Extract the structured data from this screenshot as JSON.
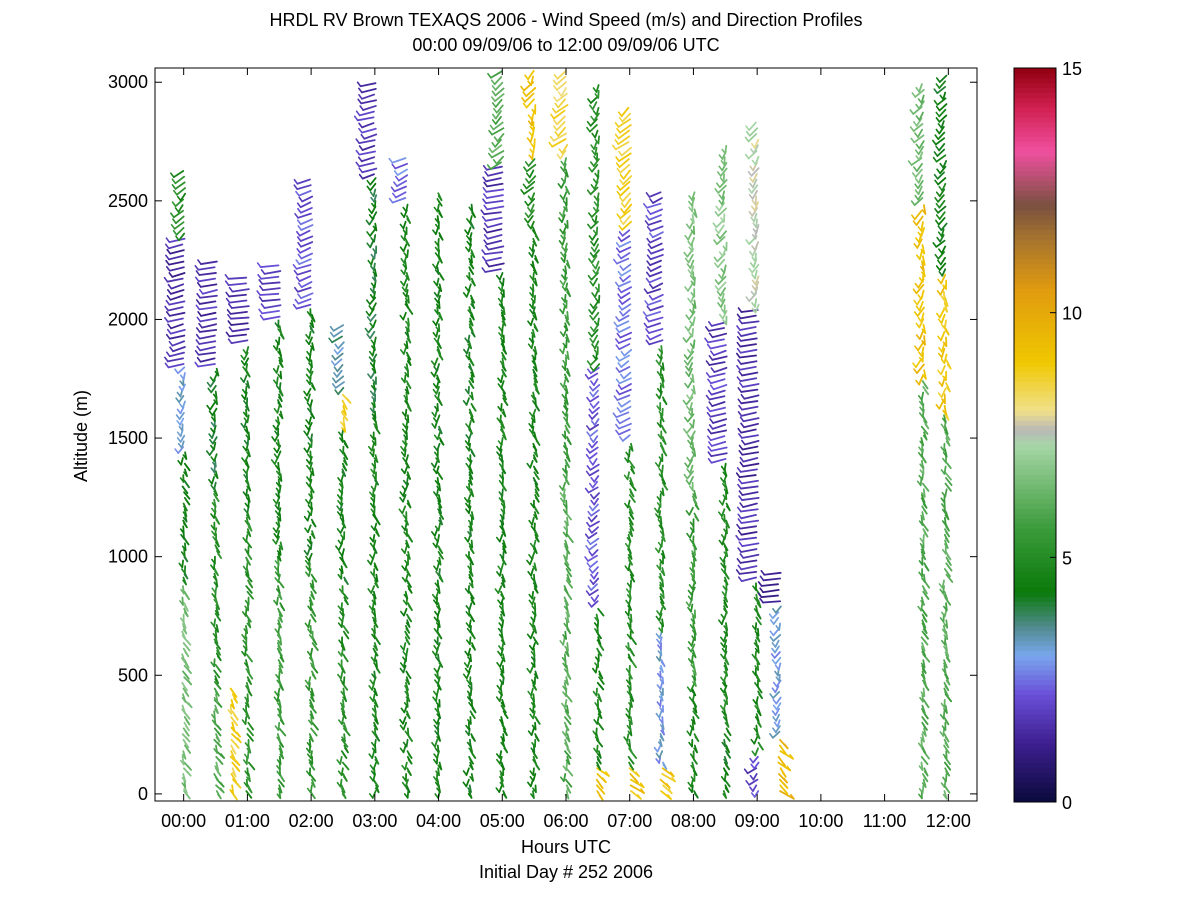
{
  "chart_data": {
    "type": "wind-barb-profile",
    "title": "HRDL RV Brown TEXAQS 2006 - Wind Speed (m/s) and Direction Profiles",
    "subtitle": "00:00 09/09/06 to 12:00 09/09/06  UTC",
    "xlabel": "Hours UTC",
    "xlabel2": "Initial Day # 252  2006",
    "ylabel": "Altitude (m)",
    "xlim_hours": [
      -0.45,
      12.45
    ],
    "ylim": [
      -30,
      3060
    ],
    "x_ticks": [
      {
        "hour": 0,
        "label": "00:00"
      },
      {
        "hour": 1,
        "label": "01:00"
      },
      {
        "hour": 2,
        "label": "02:00"
      },
      {
        "hour": 3,
        "label": "03:00"
      },
      {
        "hour": 4,
        "label": "04:00"
      },
      {
        "hour": 5,
        "label": "05:00"
      },
      {
        "hour": 6,
        "label": "06:00"
      },
      {
        "hour": 7,
        "label": "07:00"
      },
      {
        "hour": 8,
        "label": "08:00"
      },
      {
        "hour": 9,
        "label": "09:00"
      },
      {
        "hour": 10,
        "label": "10:00"
      },
      {
        "hour": 11,
        "label": "11:00"
      },
      {
        "hour": 12,
        "label": "12:00"
      }
    ],
    "y_ticks": [
      0,
      500,
      1000,
      1500,
      2000,
      2500,
      3000
    ],
    "colorbar": {
      "min": 0,
      "max": 15,
      "ticks": [
        0,
        5,
        10,
        15
      ],
      "units": "m/s",
      "stops": [
        {
          "v": 0,
          "color": "#0a0a3c"
        },
        {
          "v": 1.2,
          "color": "#3d1f8f"
        },
        {
          "v": 2.2,
          "color": "#6a4fd8"
        },
        {
          "v": 3.0,
          "color": "#7aa7ee"
        },
        {
          "v": 3.6,
          "color": "#4f8a8a"
        },
        {
          "v": 4.3,
          "color": "#0a7a0a"
        },
        {
          "v": 5.6,
          "color": "#3b9b3b"
        },
        {
          "v": 7.3,
          "color": "#a7d6a7"
        },
        {
          "v": 7.6,
          "color": "#b8b8b8"
        },
        {
          "v": 8.0,
          "color": "#f0e08a"
        },
        {
          "v": 9.0,
          "color": "#f0c800"
        },
        {
          "v": 10.5,
          "color": "#e09a10"
        },
        {
          "v": 11.6,
          "color": "#a07030"
        },
        {
          "v": 12.2,
          "color": "#7a5040"
        },
        {
          "v": 13.3,
          "color": "#f050a0"
        },
        {
          "v": 14.2,
          "color": "#d02050"
        },
        {
          "v": 15,
          "color": "#900010"
        }
      ]
    },
    "profiles": [
      {
        "t": 0.0,
        "z0": 0,
        "z1": 2650,
        "segments": [
          {
            "z0": 0,
            "z1": 900,
            "speed": 6.5,
            "dir": 170
          },
          {
            "z0": 900,
            "z1": 1450,
            "speed": 4.5,
            "dir": 175
          },
          {
            "z0": 1450,
            "z1": 1800,
            "speed": 3.0,
            "dir": 190
          },
          {
            "z0": 1800,
            "z1": 2350,
            "speed": 1.5,
            "dir": 230
          },
          {
            "z0": 2350,
            "z1": 2650,
            "speed": 5.0,
            "dir": 200
          }
        ]
      },
      {
        "t": 0.5,
        "z0": 0,
        "z1": 2250,
        "segments": [
          {
            "z0": 0,
            "z1": 460,
            "speed": 6.0,
            "dir": 170
          },
          {
            "z0": 460,
            "z1": 1300,
            "speed": 5.0,
            "dir": 175
          },
          {
            "z0": 1300,
            "z1": 1800,
            "speed": 4.2,
            "dir": 185
          },
          {
            "z0": 1800,
            "z1": 2250,
            "speed": 1.6,
            "dir": 240
          }
        ]
      },
      {
        "t": 0.75,
        "z0": 0,
        "z1": 460,
        "segments": [
          {
            "z0": 0,
            "z1": 460,
            "speed": 8.7,
            "dir": 170
          }
        ]
      },
      {
        "t": 1.0,
        "z0": 0,
        "z1": 2200,
        "segments": [
          {
            "z0": 0,
            "z1": 1200,
            "speed": 5.2,
            "dir": 175
          },
          {
            "z0": 1200,
            "z1": 1900,
            "speed": 4.5,
            "dir": 180
          },
          {
            "z0": 1900,
            "z1": 2200,
            "speed": 1.5,
            "dir": 250
          }
        ]
      },
      {
        "t": 1.5,
        "z0": 0,
        "z1": 2250,
        "segments": [
          {
            "z0": 0,
            "z1": 1000,
            "speed": 5.5,
            "dir": 175
          },
          {
            "z0": 1000,
            "z1": 2000,
            "speed": 4.6,
            "dir": 180
          },
          {
            "z0": 2000,
            "z1": 2250,
            "speed": 1.8,
            "dir": 250
          }
        ]
      },
      {
        "t": 2.0,
        "z0": 0,
        "z1": 2600,
        "segments": [
          {
            "z0": 0,
            "z1": 1000,
            "speed": 5.4,
            "dir": 175
          },
          {
            "z0": 1000,
            "z1": 2050,
            "speed": 4.5,
            "dir": 180
          },
          {
            "z0": 2050,
            "z1": 2600,
            "speed": 2.2,
            "dir": 220
          }
        ]
      },
      {
        "t": 2.5,
        "z0": 0,
        "z1": 2000,
        "segments": [
          {
            "z0": 0,
            "z1": 900,
            "speed": 5.0,
            "dir": 175
          },
          {
            "z0": 900,
            "z1": 1550,
            "speed": 4.4,
            "dir": 180
          },
          {
            "z0": 1550,
            "z1": 1700,
            "speed": 9.0,
            "dir": 170
          },
          {
            "z0": 1700,
            "z1": 2000,
            "speed": 3.5,
            "dir": 200
          }
        ]
      },
      {
        "t": 3.0,
        "z0": 0,
        "z1": 3000,
        "segments": [
          {
            "z0": 0,
            "z1": 1600,
            "speed": 4.6,
            "dir": 178
          },
          {
            "z0": 1600,
            "z1": 2600,
            "speed": 4.2,
            "dir": 185
          },
          {
            "z0": 2600,
            "z1": 3000,
            "speed": 1.8,
            "dir": 230
          }
        ]
      },
      {
        "t": 3.5,
        "z0": 0,
        "z1": 2700,
        "segments": [
          {
            "z0": 0,
            "z1": 2500,
            "speed": 4.6,
            "dir": 178
          },
          {
            "z0": 2500,
            "z1": 2700,
            "speed": 2.5,
            "dir": 215
          }
        ]
      },
      {
        "t": 4.0,
        "z0": 0,
        "z1": 2550,
        "segments": [
          {
            "z0": 0,
            "z1": 2550,
            "speed": 4.5,
            "dir": 178
          }
        ]
      },
      {
        "t": 4.5,
        "z0": 0,
        "z1": 2500,
        "segments": [
          {
            "z0": 0,
            "z1": 2500,
            "speed": 4.5,
            "dir": 178
          }
        ]
      },
      {
        "t": 5.0,
        "z0": 0,
        "z1": 3050,
        "segments": [
          {
            "z0": 0,
            "z1": 2200,
            "speed": 4.6,
            "dir": 178
          },
          {
            "z0": 2200,
            "z1": 2650,
            "speed": 1.6,
            "dir": 240
          },
          {
            "z0": 2650,
            "z1": 3050,
            "speed": 6.0,
            "dir": 200
          }
        ]
      },
      {
        "t": 5.5,
        "z0": 0,
        "z1": 3050,
        "segments": [
          {
            "z0": 0,
            "z1": 2400,
            "speed": 4.6,
            "dir": 178
          },
          {
            "z0": 2400,
            "z1": 2700,
            "speed": 5.0,
            "dir": 195
          },
          {
            "z0": 2700,
            "z1": 3050,
            "speed": 9.2,
            "dir": 190
          }
        ]
      },
      {
        "t": 6.0,
        "z0": 0,
        "z1": 3050,
        "segments": [
          {
            "z0": 0,
            "z1": 1300,
            "speed": 6.0,
            "dir": 175
          },
          {
            "z0": 1300,
            "z1": 2700,
            "speed": 5.5,
            "dir": 180
          },
          {
            "z0": 2700,
            "z1": 3050,
            "speed": 8.5,
            "dir": 200
          }
        ]
      },
      {
        "t": 6.5,
        "z0": 0,
        "z1": 3000,
        "segments": [
          {
            "z0": 0,
            "z1": 120,
            "speed": 9.3,
            "dir": 160
          },
          {
            "z0": 120,
            "z1": 800,
            "speed": 4.7,
            "dir": 175
          },
          {
            "z0": 800,
            "z1": 1800,
            "speed": 2.2,
            "dir": 200
          },
          {
            "z0": 1800,
            "z1": 3000,
            "speed": 5.0,
            "dir": 190
          }
        ]
      },
      {
        "t": 7.0,
        "z0": 0,
        "z1": 2900,
        "segments": [
          {
            "z0": 0,
            "z1": 120,
            "speed": 9.2,
            "dir": 160
          },
          {
            "z0": 120,
            "z1": 1500,
            "speed": 5.0,
            "dir": 175
          },
          {
            "z0": 1500,
            "z1": 2400,
            "speed": 2.5,
            "dir": 210
          },
          {
            "z0": 2400,
            "z1": 2900,
            "speed": 8.8,
            "dir": 200
          }
        ]
      },
      {
        "t": 7.5,
        "z0": 0,
        "z1": 2550,
        "segments": [
          {
            "z0": 0,
            "z1": 120,
            "speed": 9.0,
            "dir": 160
          },
          {
            "z0": 120,
            "z1": 700,
            "speed": 3.0,
            "dir": 180
          },
          {
            "z0": 700,
            "z1": 1900,
            "speed": 5.0,
            "dir": 178
          },
          {
            "z0": 1900,
            "z1": 2550,
            "speed": 2.0,
            "dir": 220
          }
        ]
      },
      {
        "t": 8.0,
        "z0": 0,
        "z1": 2550,
        "segments": [
          {
            "z0": 0,
            "z1": 450,
            "speed": 4.6,
            "dir": 175
          },
          {
            "z0": 450,
            "z1": 1300,
            "speed": 5.5,
            "dir": 180
          },
          {
            "z0": 1300,
            "z1": 2550,
            "speed": 6.5,
            "dir": 185
          }
        ]
      },
      {
        "t": 8.5,
        "z0": 0,
        "z1": 2750,
        "segments": [
          {
            "z0": 0,
            "z1": 300,
            "speed": 4.5,
            "dir": 175
          },
          {
            "z0": 300,
            "z1": 1400,
            "speed": 4.8,
            "dir": 178
          },
          {
            "z0": 1400,
            "z1": 2000,
            "speed": 1.8,
            "dir": 230
          },
          {
            "z0": 2000,
            "z1": 2750,
            "speed": 6.8,
            "dir": 190
          }
        ]
      },
      {
        "t": 9.0,
        "z0": 0,
        "z1": 2850,
        "segments": [
          {
            "z0": 0,
            "z1": 180,
            "speed": 2.0,
            "dir": 200
          },
          {
            "z0": 180,
            "z1": 900,
            "speed": 4.7,
            "dir": 178
          },
          {
            "z0": 900,
            "z1": 2050,
            "speed": 1.5,
            "dir": 240
          },
          {
            "z0": 2050,
            "z1": 2850,
            "speed": 7.5,
            "dir": 190
          }
        ]
      },
      {
        "t": 9.35,
        "z0": 0,
        "z1": 950,
        "segments": [
          {
            "z0": 0,
            "z1": 250,
            "speed": 9.5,
            "dir": 160
          },
          {
            "z0": 250,
            "z1": 800,
            "speed": 3.0,
            "dir": 190
          },
          {
            "z0": 800,
            "z1": 950,
            "speed": 1.4,
            "dir": 250
          }
        ]
      },
      {
        "t": 11.6,
        "z0": 0,
        "z1": 3000,
        "segments": [
          {
            "z0": 0,
            "z1": 1750,
            "speed": 6.0,
            "dir": 175
          },
          {
            "z0": 1750,
            "z1": 2500,
            "speed": 9.3,
            "dir": 185
          },
          {
            "z0": 2500,
            "z1": 3000,
            "speed": 6.5,
            "dir": 195
          }
        ]
      },
      {
        "t": 11.95,
        "z0": 0,
        "z1": 3050,
        "segments": [
          {
            "z0": 0,
            "z1": 1600,
            "speed": 6.0,
            "dir": 175
          },
          {
            "z0": 1600,
            "z1": 2200,
            "speed": 9.0,
            "dir": 180
          },
          {
            "z0": 2200,
            "z1": 3050,
            "speed": 4.5,
            "dir": 195
          }
        ]
      }
    ]
  }
}
